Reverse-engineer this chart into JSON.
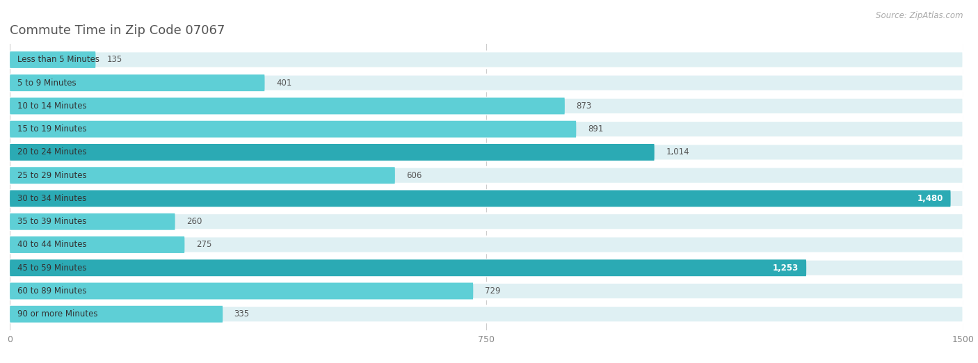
{
  "title": "Commute Time in Zip Code 07067",
  "source": "Source: ZipAtlas.com",
  "categories": [
    "Less than 5 Minutes",
    "5 to 9 Minutes",
    "10 to 14 Minutes",
    "15 to 19 Minutes",
    "20 to 24 Minutes",
    "25 to 29 Minutes",
    "30 to 34 Minutes",
    "35 to 39 Minutes",
    "40 to 44 Minutes",
    "45 to 59 Minutes",
    "60 to 89 Minutes",
    "90 or more Minutes"
  ],
  "values": [
    135,
    401,
    873,
    891,
    1014,
    606,
    1480,
    260,
    275,
    1253,
    729,
    335
  ],
  "max_value": 1500,
  "xticks": [
    0,
    750,
    1500
  ],
  "bar_color_normal": "#5ecfd6",
  "bar_color_highlight": "#2baab4",
  "highlight_indices": [
    4,
    6,
    9
  ],
  "bar_bg_color": "#dff0f3",
  "background_color": "#ffffff",
  "title_color": "#555555",
  "title_fontsize": 13,
  "source_fontsize": 8.5,
  "label_fontsize": 8.5,
  "value_fontsize": 8.5,
  "tick_fontsize": 9,
  "bar_height": 0.72,
  "row_sep_color": "#ffffff",
  "figsize": [
    14.06,
    5.22
  ]
}
